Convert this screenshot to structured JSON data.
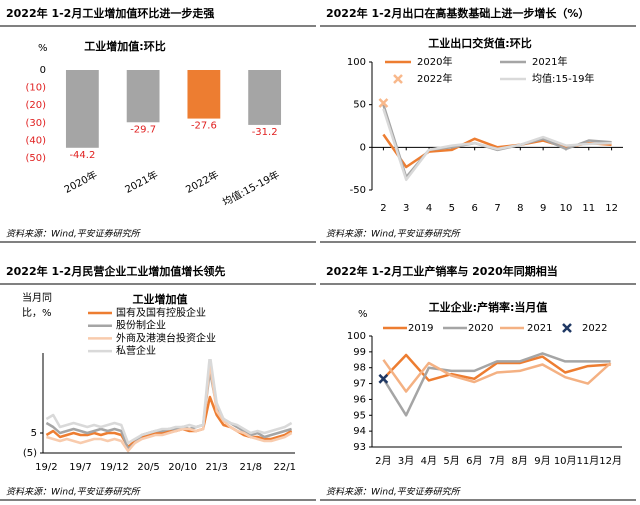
{
  "chart_data": [
    {
      "type": "bar",
      "title": "2022年 1-2月工业增加值环比进一步走强",
      "subtitle": "工业增加值:环比",
      "ylabel": "%",
      "categories": [
        "2020年",
        "2021年",
        "2022年",
        "均值:15-19年"
      ],
      "values": [
        -44.2,
        -29.7,
        -27.6,
        -31.2
      ],
      "colors": [
        "#a5a5a5",
        "#a5a5a5",
        "#ed7d31",
        "#a5a5a5"
      ],
      "ylim": [
        -50,
        0
      ],
      "yticks": [
        0,
        {
          "value": -10,
          "label": "(10)"
        },
        {
          "value": -20,
          "label": "(20)"
        },
        {
          "value": -30,
          "label": "(30)"
        },
        {
          "value": -40,
          "label": "(40)"
        },
        {
          "value": -50,
          "label": "(50)"
        }
      ],
      "source": "资料来源：Wind,平安证券研究所"
    },
    {
      "type": "line",
      "title": "2022年 1-2月出口在高基数基础上进一步增长（%）",
      "subtitle": "工业出口交货值:环比",
      "x": [
        2,
        3,
        4,
        5,
        6,
        7,
        8,
        9,
        10,
        11,
        12
      ],
      "xlim": [
        1.5,
        12.5
      ],
      "xticks": [
        2,
        3,
        4,
        5,
        6,
        7,
        8,
        9,
        10,
        11,
        12
      ],
      "ylim": [
        -50,
        100
      ],
      "yticks": [
        -50,
        0,
        50,
        100
      ],
      "series": [
        {
          "name": "2020年",
          "color": "#ed7d31",
          "values": [
            15,
            -23,
            -5,
            -3,
            10,
            0,
            3,
            8,
            0,
            5,
            3
          ]
        },
        {
          "name": "2021年",
          "color": "#a5a5a5",
          "values": [
            50,
            -35,
            -3,
            0,
            5,
            -3,
            3,
            10,
            -2,
            8,
            6
          ]
        },
        {
          "name": "2022年",
          "color": "#f8b88b",
          "marker": "x",
          "values": [
            52,
            null,
            null,
            null,
            null,
            null,
            null,
            null,
            null,
            null,
            null
          ]
        },
        {
          "name": "均值:15-19年",
          "color": "#d9d9d9",
          "values": [
            45,
            -38,
            -3,
            2,
            5,
            -2,
            3,
            12,
            2,
            4,
            5
          ]
        }
      ],
      "source": "资料来源：Wind,平安证券研究所"
    },
    {
      "type": "line",
      "title": "2022年 1-2月民营企业工业增加值增长领先",
      "subtitle": "工业增加值",
      "ylabel": [
        "当月同",
        "比，%"
      ],
      "categories": [
        "19/2",
        null,
        null,
        null,
        null,
        "19/7",
        null,
        null,
        null,
        null,
        "19/12",
        null,
        null,
        null,
        null,
        "20/5",
        null,
        null,
        null,
        null,
        "20/10",
        null,
        null,
        null,
        null,
        "21/3",
        null,
        null,
        null,
        null,
        "21/8",
        null,
        null,
        null,
        null,
        "22/1",
        null
      ],
      "ylim": [
        -5,
        45
      ],
      "yticks": [
        {
          "value": -5,
          "label": "(5)"
        },
        5
      ],
      "series": [
        {
          "name": "国有及国有控股企业",
          "color": "#ed7d31",
          "values": [
            4,
            6,
            3,
            4,
            5,
            4,
            4,
            5,
            4,
            5,
            5,
            4,
            -2,
            1,
            3,
            4,
            5,
            5,
            6,
            6,
            7,
            6,
            6,
            7,
            23,
            14,
            9,
            8,
            6,
            4,
            3,
            3,
            2,
            2,
            3,
            4,
            6
          ]
        },
        {
          "name": "股份制企业",
          "color": "#a5a5a5",
          "values": [
            10,
            8,
            5,
            6,
            7,
            6,
            5,
            6,
            7,
            6,
            7,
            6,
            -3,
            0,
            4,
            5,
            6,
            6,
            7,
            7,
            8,
            7,
            8,
            9,
            36,
            18,
            12,
            10,
            8,
            6,
            4,
            5,
            3,
            4,
            5,
            6,
            7
          ]
        },
        {
          "name": "外商及港澳台投资企业",
          "color": "#f8cbad",
          "values": [
            3,
            2,
            1,
            2,
            1,
            0,
            1,
            2,
            2,
            1,
            2,
            1,
            -4,
            0,
            2,
            3,
            4,
            4,
            5,
            6,
            7,
            7,
            6,
            7,
            40,
            16,
            11,
            8,
            6,
            5,
            3,
            2,
            1,
            1,
            2,
            3,
            5
          ]
        },
        {
          "name": "私营企业",
          "color": "#d9d9d9",
          "values": [
            12,
            14,
            8,
            9,
            10,
            9,
            8,
            9,
            8,
            9,
            10,
            9,
            0,
            2,
            4,
            5,
            6,
            7,
            7,
            8,
            8,
            9,
            8,
            9,
            44,
            20,
            12,
            10,
            9,
            7,
            5,
            6,
            5,
            6,
            7,
            8,
            10
          ]
        }
      ],
      "source": "资料来源：Wind,平安证券研究所"
    },
    {
      "type": "line",
      "title": "2022年 1-2月工业产销率与 2020年同期相当",
      "subtitle": "工业企业:产销率:当月值",
      "ylabel": "%",
      "categories": [
        "2月",
        "3月",
        "4月",
        "5月",
        "6月",
        "7月",
        "8月",
        "9月",
        "10月",
        "11月",
        "12月"
      ],
      "ylim": [
        93,
        100
      ],
      "yticks": [
        93,
        94,
        95,
        96,
        97,
        98,
        99,
        100
      ],
      "series": [
        {
          "name": "2019",
          "color": "#ed7d31",
          "values": [
            97.3,
            98.8,
            97.2,
            97.6,
            97.3,
            98.3,
            98.3,
            98.7,
            97.7,
            98.1,
            98.2
          ]
        },
        {
          "name": "2020",
          "color": "#a5a5a5",
          "values": [
            97.3,
            95.0,
            98.0,
            97.8,
            97.8,
            98.4,
            98.4,
            98.9,
            98.4,
            98.4,
            98.4
          ]
        },
        {
          "name": "2021",
          "color": "#f4b183",
          "values": [
            98.5,
            96.5,
            98.3,
            97.5,
            97.1,
            97.7,
            97.8,
            98.2,
            97.4,
            97.0,
            98.3
          ]
        },
        {
          "name": "2022",
          "color": "#1f3864",
          "marker": "x",
          "values": [
            97.3,
            null,
            null,
            null,
            null,
            null,
            null,
            null,
            null,
            null,
            null
          ]
        }
      ],
      "source": "资料来源：Wind,平安证券研究所"
    }
  ]
}
